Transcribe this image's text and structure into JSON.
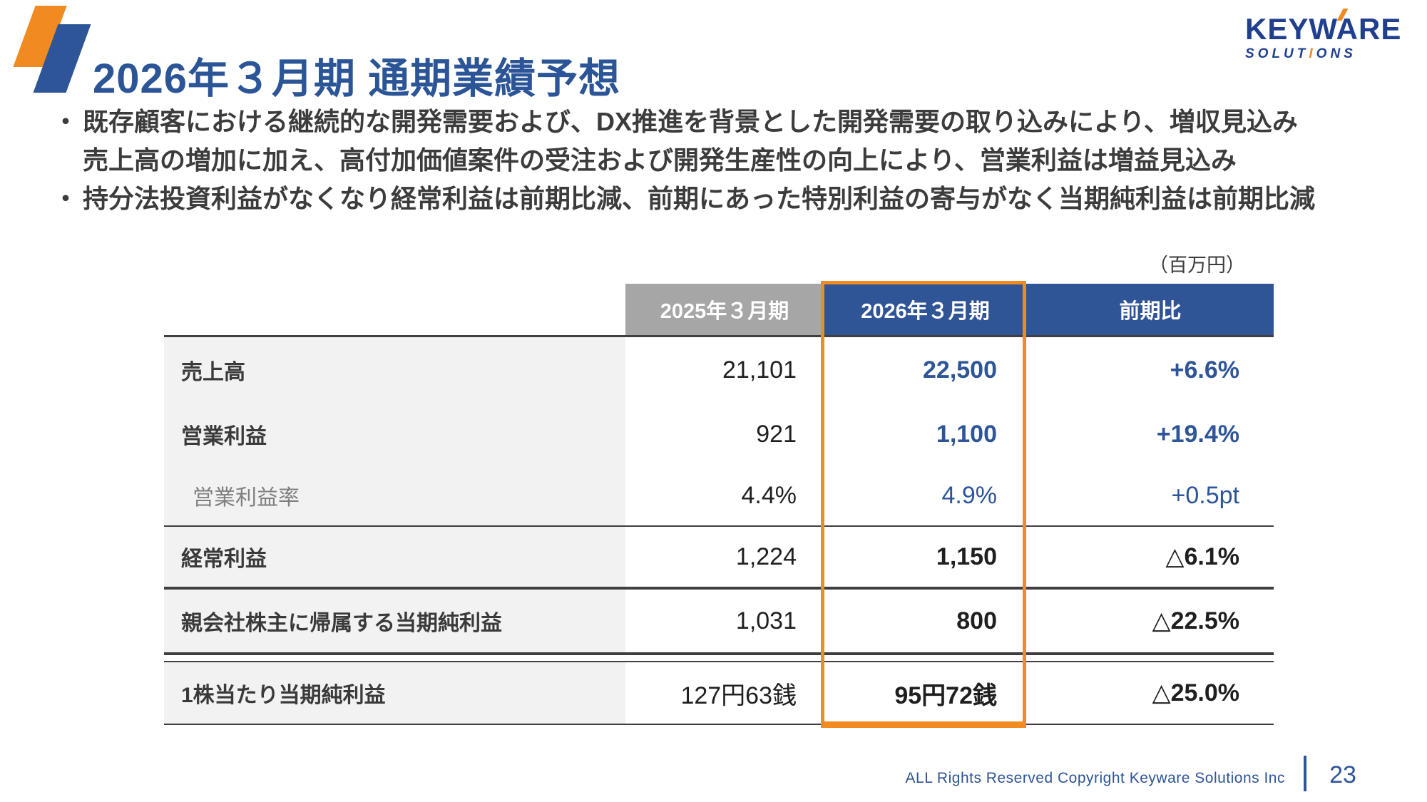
{
  "colors": {
    "brand_blue": "#2E5597",
    "accent_orange": "#F08A21",
    "header_gray": "#A6A6A6",
    "label_bg": "#F2F2F2",
    "text_dark": "#3C3C3C"
  },
  "header": {
    "title": "2026年３月期 通期業績予想"
  },
  "logo": {
    "name": "KEYWARE",
    "sub_pre": "SOLUT",
    "sub_accent": "I",
    "sub_post": "ONS"
  },
  "bullets": [
    {
      "marker": "・",
      "lines": [
        "既存顧客における継続的な開発需要および、DX推進を背景とした開発需要の取り込みにより、増収見込み",
        "売上高の増加に加え、高付加価値案件の受注および開発生産性の向上により、営業利益は増益見込み"
      ]
    },
    {
      "marker": "・",
      "lines": [
        "持分法投資利益がなくなり経常利益は前期比減、前期にあった特別利益の寄与がなく当期純利益は前期比減"
      ]
    }
  ],
  "unit_note": "（百万円）",
  "table": {
    "columns": [
      "",
      "2025年３月期",
      "2026年３月期",
      "前期比"
    ],
    "rows": [
      {
        "label": "売上高",
        "prev": "21,101",
        "forecast": "22,500",
        "change": "+6.6%"
      },
      {
        "label": "営業利益",
        "prev": "921",
        "forecast": "1,100",
        "change": "+19.4%"
      },
      {
        "label": "営業利益率",
        "prev": "4.4%",
        "forecast": "4.9%",
        "change": "+0.5pt"
      },
      {
        "label": "経常利益",
        "prev": "1,224",
        "forecast": "1,150",
        "change": "△6.1%"
      },
      {
        "label": "親会社株主に帰属する当期純利益",
        "prev": "1,031",
        "forecast": "800",
        "change": "△22.5%"
      },
      {
        "label": "1株当たり当期純利益",
        "prev": "127円63銭",
        "forecast": "95円72銭",
        "change": "△25.0%"
      }
    ]
  },
  "footer": {
    "copyright": "ALL Rights Reserved Copyright Keyware Solutions Inc",
    "page": "23"
  }
}
